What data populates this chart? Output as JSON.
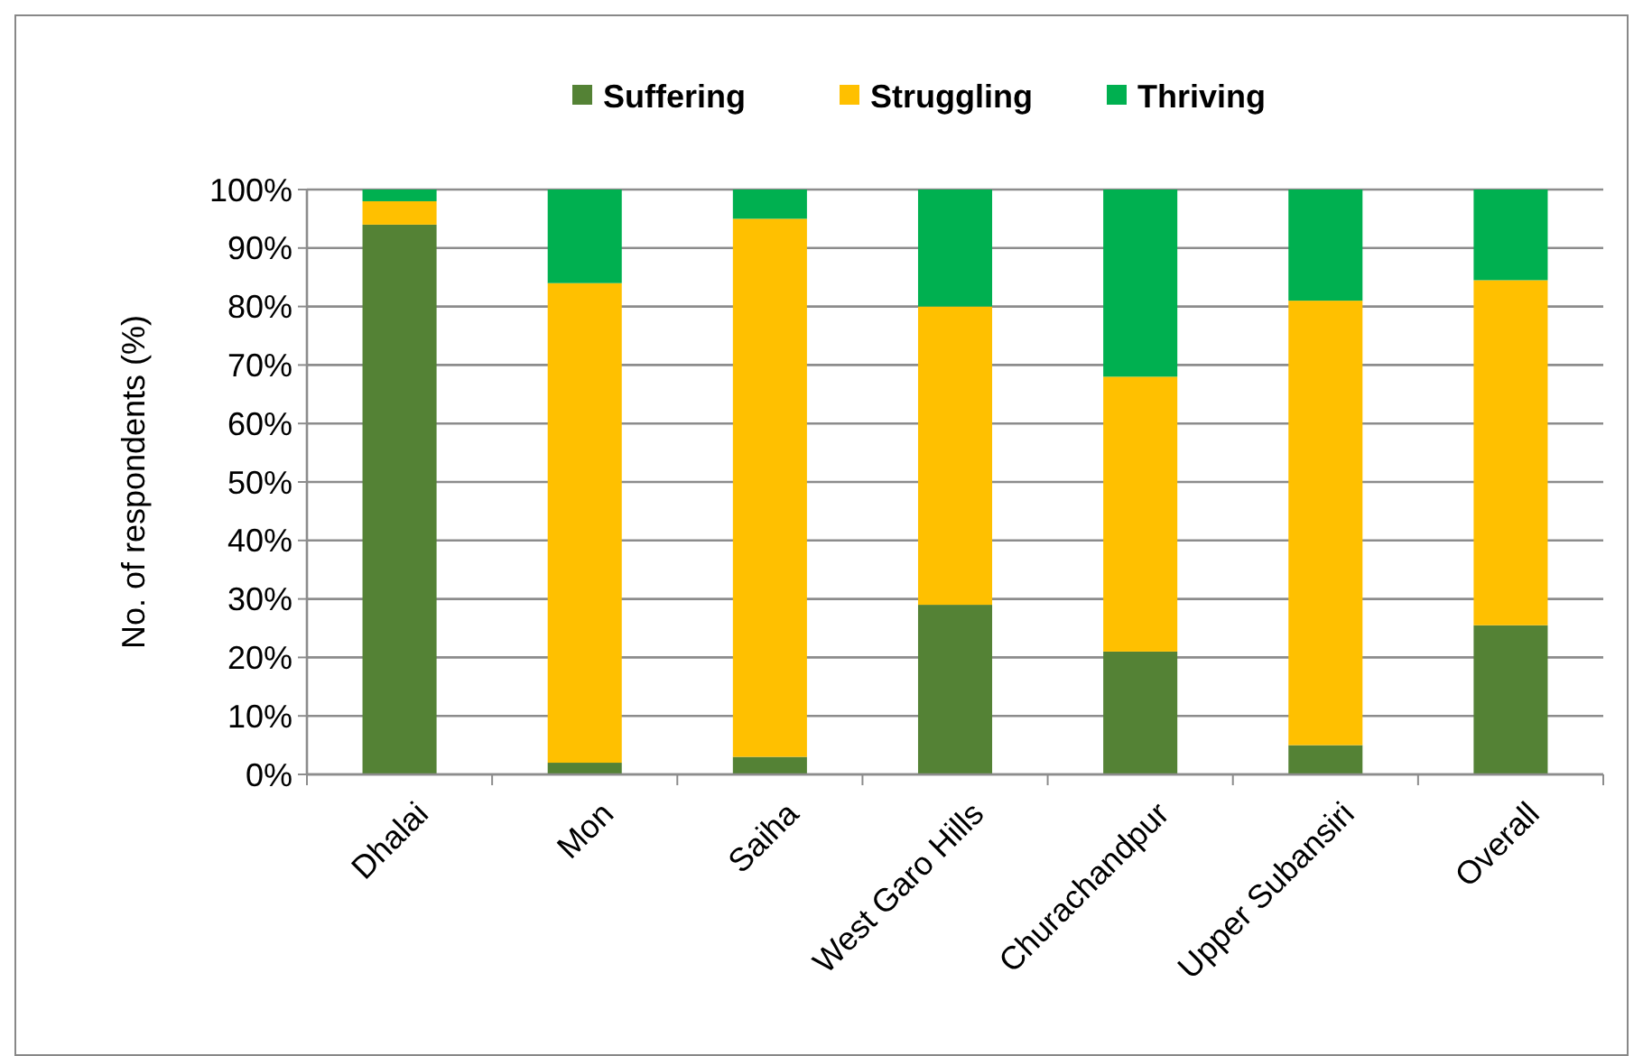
{
  "chart_data": {
    "type": "bar",
    "stacked": true,
    "ylabel": "No. of respondents (%)",
    "categories": [
      "Dhalai",
      "Mon",
      "Saiha",
      "West Garo Hills",
      "Churachandpur",
      "Upper Subansiri",
      "Overall"
    ],
    "series": [
      {
        "name": "Suffering",
        "color": "#548235",
        "values": [
          94,
          2,
          3,
          29,
          21,
          5,
          25.5
        ]
      },
      {
        "name": "Struggling",
        "color": "#ffc000",
        "values": [
          4,
          82,
          92,
          51,
          47,
          76,
          59
        ]
      },
      {
        "name": "Thriving",
        "color": "#00b050",
        "values": [
          2,
          16,
          5,
          20,
          32,
          19,
          15.5
        ]
      }
    ],
    "ylim": [
      0,
      100
    ],
    "yticks": [
      {
        "value": 0,
        "label": "0%"
      },
      {
        "value": 10,
        "label": "10%"
      },
      {
        "value": 20,
        "label": "20%"
      },
      {
        "value": 30,
        "label": "30%"
      },
      {
        "value": 40,
        "label": "40%"
      },
      {
        "value": 50,
        "label": "50%"
      },
      {
        "value": 60,
        "label": "60%"
      },
      {
        "value": 70,
        "label": "70%"
      },
      {
        "value": 80,
        "label": "80%"
      },
      {
        "value": 90,
        "label": "90%"
      },
      {
        "value": 100,
        "label": "100%"
      }
    ],
    "grid": "y",
    "legend": "top"
  }
}
